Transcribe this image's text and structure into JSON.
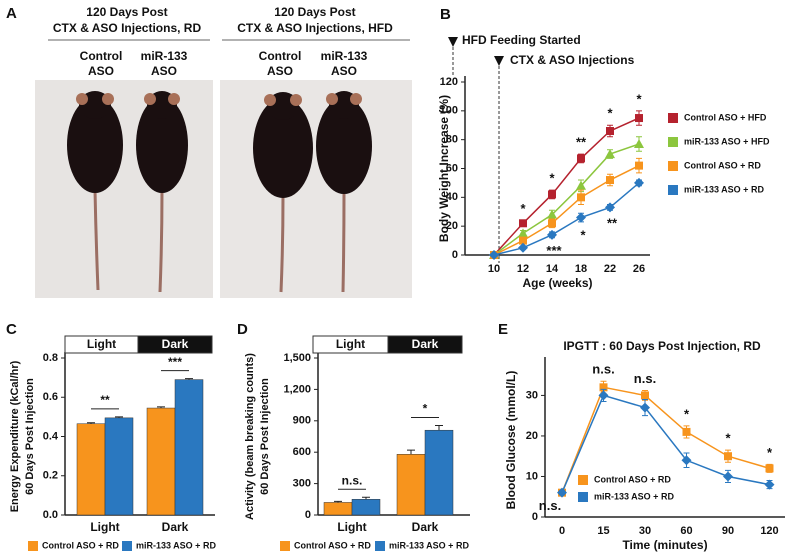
{
  "photo_panel": {
    "panel": "A",
    "groups": [
      {
        "title": [
          "120 Days Post",
          "CTX & ASO Injections, RD"
        ],
        "mice": [
          [
            "Control",
            "ASO"
          ],
          [
            "miR-133",
            "ASO"
          ]
        ]
      },
      {
        "title": [
          "120 Days Post",
          "CTX & ASO Injections, HFD"
        ],
        "mice": [
          [
            "Control",
            "ASO"
          ],
          [
            "miR-133",
            "ASO"
          ]
        ]
      }
    ]
  },
  "chart_data": [
    {
      "type": "line",
      "panel": "B",
      "x_label": "Age (weeks)",
      "y_label": "Body Weight Increase (%)",
      "categories": [
        "10",
        "12",
        "14",
        "18",
        "22",
        "26"
      ],
      "ylim": [
        0,
        120
      ],
      "yticks": [
        0,
        20,
        40,
        60,
        80,
        100,
        120
      ],
      "annotations": [
        "HFD Feeding Started",
        "CTX & ASO Injections"
      ],
      "sig_above": [
        null,
        "*",
        "*",
        "**",
        "*",
        "*"
      ],
      "sig_below": [
        null,
        null,
        "***",
        "*",
        "**",
        null
      ],
      "series": [
        {
          "name": "Control ASO + HFD",
          "color": "#b5222e",
          "values": [
            0,
            22,
            42,
            67,
            86,
            95
          ],
          "errors": [
            0,
            2,
            3,
            3,
            4,
            5
          ]
        },
        {
          "name": "miR-133 ASO + HFD",
          "color": "#8cc63e",
          "values": [
            0,
            15,
            28,
            48,
            70,
            77
          ],
          "errors": [
            0,
            2,
            3,
            4,
            3,
            5
          ]
        },
        {
          "name": "Control ASO + RD",
          "color": "#f7941d",
          "values": [
            0,
            10,
            22,
            40,
            52,
            62
          ],
          "errors": [
            0,
            2,
            3,
            5,
            4,
            5
          ]
        },
        {
          "name": "miR-133 ASO + RD",
          "color": "#2a78c0",
          "values": [
            0,
            5,
            14,
            26,
            33,
            50
          ],
          "errors": [
            0,
            1,
            2,
            3,
            2,
            2
          ]
        }
      ]
    },
    {
      "type": "bar",
      "panel": "C",
      "y_label": [
        "Energy Expenditure (kCal/hr)",
        "60 Days Post Injection"
      ],
      "categories": [
        "Light",
        "Dark"
      ],
      "ylim": [
        0,
        0.8
      ],
      "yticks": [
        {
          "value": 0,
          "label": "0.0"
        },
        0.2,
        0.4,
        0.6,
        0.8
      ],
      "sig": [
        "**",
        "***"
      ],
      "series": [
        {
          "name": "Control ASO + RD",
          "color": "#f7941d",
          "values": [
            0.465,
            0.545
          ],
          "errors": [
            0.005,
            0.006
          ]
        },
        {
          "name": "miR-133 ASO + RD",
          "color": "#2a78c0",
          "values": [
            0.495,
            0.69
          ],
          "errors": [
            0.005,
            0.005
          ]
        }
      ]
    },
    {
      "type": "bar",
      "panel": "D",
      "y_label": [
        "Activity (beam breaking counts)",
        "60 Days Post Injection"
      ],
      "categories": [
        "Light",
        "Dark"
      ],
      "ylim": [
        0,
        1500
      ],
      "yticks": [
        0,
        300,
        600,
        900,
        {
          "value": 1200,
          "label": "1,200"
        },
        {
          "value": 1500,
          "label": "1,500"
        }
      ],
      "sig": [
        "n.s.",
        "*"
      ],
      "series": [
        {
          "name": "Control ASO + RD",
          "color": "#f7941d",
          "values": [
            120,
            580
          ],
          "errors": [
            10,
            40
          ]
        },
        {
          "name": "miR-133 ASO + RD",
          "color": "#2a78c0",
          "values": [
            150,
            810
          ],
          "errors": [
            20,
            45
          ]
        }
      ]
    },
    {
      "type": "line",
      "panel": "E",
      "title": "IPGTT : 60 Days Post Injection, RD",
      "x_label": "Time (minutes)",
      "y_label": "Blood Glucose (mmol/L)",
      "categories": [
        "0",
        "15",
        "30",
        "60",
        "90",
        "120"
      ],
      "ylim": [
        0,
        38
      ],
      "yticks": [
        0,
        10,
        20,
        30
      ],
      "sig_above": [
        "n.s.",
        "n.s.",
        "n.s.",
        "*",
        "*",
        "*"
      ],
      "series": [
        {
          "name": "Control ASO + RD",
          "color": "#f7941d",
          "values": [
            6,
            32,
            30,
            21,
            15,
            12
          ],
          "errors": [
            0.5,
            1.5,
            1.2,
            1.5,
            1.5,
            1
          ]
        },
        {
          "name": "miR-133 ASO + RD",
          "color": "#2a78c0",
          "values": [
            6,
            30,
            27,
            14,
            10,
            8
          ],
          "errors": [
            0.5,
            1.5,
            2,
            1.8,
            1.5,
            1
          ]
        }
      ]
    }
  ]
}
